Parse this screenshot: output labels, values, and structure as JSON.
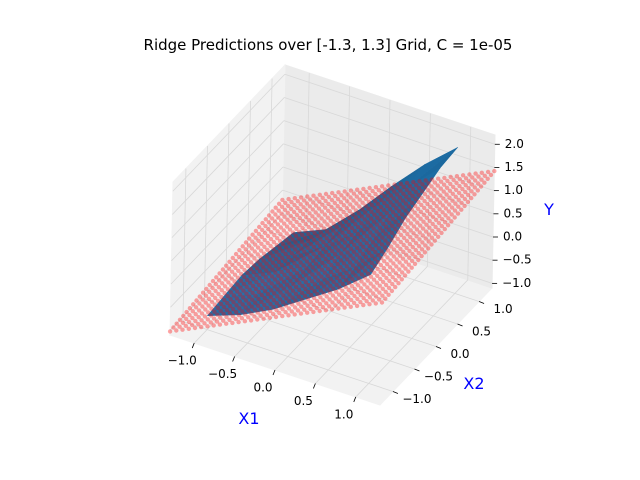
{
  "chart_data": {
    "type": "surface-3d",
    "title": "Ridge Predictions over [-1.3, 1.3] Grid, C = 1e-05",
    "xlabel": "X1",
    "ylabel": "X2",
    "zlabel": "Y",
    "x_ticks": [
      "−1.0",
      "−0.5",
      "0.0",
      "0.5",
      "1.0"
    ],
    "y_ticks": [
      "−1.0",
      "−0.5",
      "0.0",
      "0.5",
      "1.0"
    ],
    "z_ticks": [
      "−1.0",
      "−0.5",
      "0.0",
      "0.5",
      "1.0",
      "1.5",
      "2.0"
    ],
    "xlim": [
      -1.3,
      1.3
    ],
    "ylim": [
      -1.3,
      1.3
    ],
    "zlim": [
      -1.1,
      2.2
    ],
    "grid": true,
    "series": [
      {
        "kind": "surface",
        "color": "#1f77b4",
        "x": [
          -1.0,
          -0.6,
          -0.2,
          0.2,
          0.6,
          1.0
        ],
        "y": [
          -1.0,
          -0.6,
          -0.2,
          0.2,
          0.6,
          1.0
        ],
        "z": [
          [
            -0.8,
            -0.55,
            -0.2,
            0.25,
            0.7,
            1.25
          ],
          [
            -0.75,
            -0.5,
            -0.1,
            0.3,
            0.8,
            1.45
          ],
          [
            -0.7,
            -0.4,
            -0.05,
            0.45,
            1.0,
            1.7
          ],
          [
            -0.75,
            -0.45,
            0.0,
            0.55,
            1.2,
            1.85
          ],
          [
            -0.85,
            -0.5,
            0.05,
            0.7,
            1.35,
            2.0
          ],
          [
            -0.95,
            -0.65,
            0.0,
            0.75,
            1.45,
            2.05
          ]
        ]
      },
      {
        "kind": "prediction-plane",
        "color": "#ff0000",
        "grid_range": [
          -1.3,
          1.3
        ],
        "z_offset": 0.2,
        "slope_x": 0.82,
        "slope_y": 0.12
      }
    ]
  }
}
